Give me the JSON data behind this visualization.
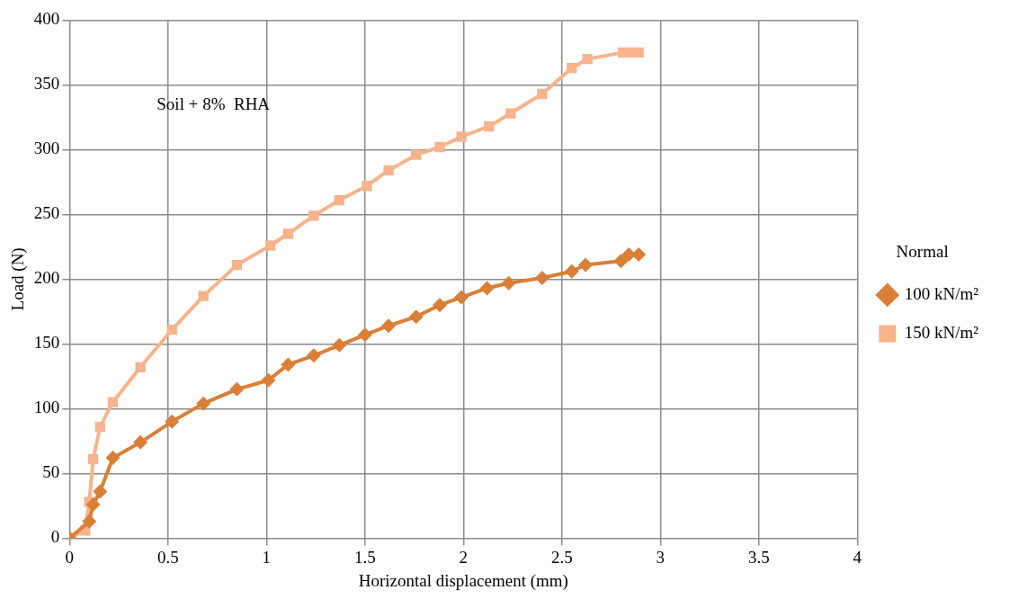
{
  "chart_data": {
    "type": "line",
    "xlabel": "Horizontal displacement (mm)",
    "ylabel": "Load (N)",
    "legend_title": "Normal",
    "legend": "right",
    "line_style": "solid",
    "grid": true,
    "annotations": [
      "Soil + 8%  RHA"
    ],
    "xlim": [
      0,
      4
    ],
    "xticks": [
      0,
      0.5,
      1,
      1.5,
      2,
      2.5,
      3,
      3.5,
      4
    ],
    "ylim": [
      0,
      400
    ],
    "yticks": [
      0,
      50,
      100,
      150,
      200,
      250,
      300,
      350,
      400
    ],
    "series": [
      {
        "name": "100 kN/m²",
        "color": "#d97f38",
        "marker": "diamond",
        "x": [
          0,
          0.1,
          0.12,
          0.155,
          0.22,
          0.36,
          0.52,
          0.68,
          0.85,
          1.01,
          1.11,
          1.24,
          1.37,
          1.5,
          1.62,
          1.76,
          1.88,
          1.99,
          2.12,
          2.23,
          2.4,
          2.55,
          2.62,
          2.8,
          2.84,
          2.89
        ],
        "values": [
          0,
          13,
          26,
          36,
          62,
          74,
          90,
          104,
          115,
          122,
          134,
          141,
          149,
          157,
          164,
          171,
          180,
          186,
          193,
          197,
          201,
          206,
          211,
          214,
          219,
          219
        ]
      },
      {
        "name": "150 kN/m²",
        "color": "#f6b38c",
        "marker": "square",
        "x": [
          0,
          0.08,
          0.1,
          0.12,
          0.155,
          0.22,
          0.36,
          0.52,
          0.68,
          0.85,
          1.02,
          1.11,
          1.24,
          1.37,
          1.51,
          1.62,
          1.76,
          1.88,
          1.99,
          2.13,
          2.24,
          2.4,
          2.55,
          2.63,
          2.81,
          2.85,
          2.89
        ],
        "values": [
          0,
          6,
          28,
          61,
          86,
          105,
          132,
          161,
          187,
          211,
          226,
          235,
          249,
          261,
          272,
          284,
          296,
          302,
          310,
          318,
          328,
          343,
          363,
          370,
          375,
          375,
          375
        ]
      }
    ]
  }
}
